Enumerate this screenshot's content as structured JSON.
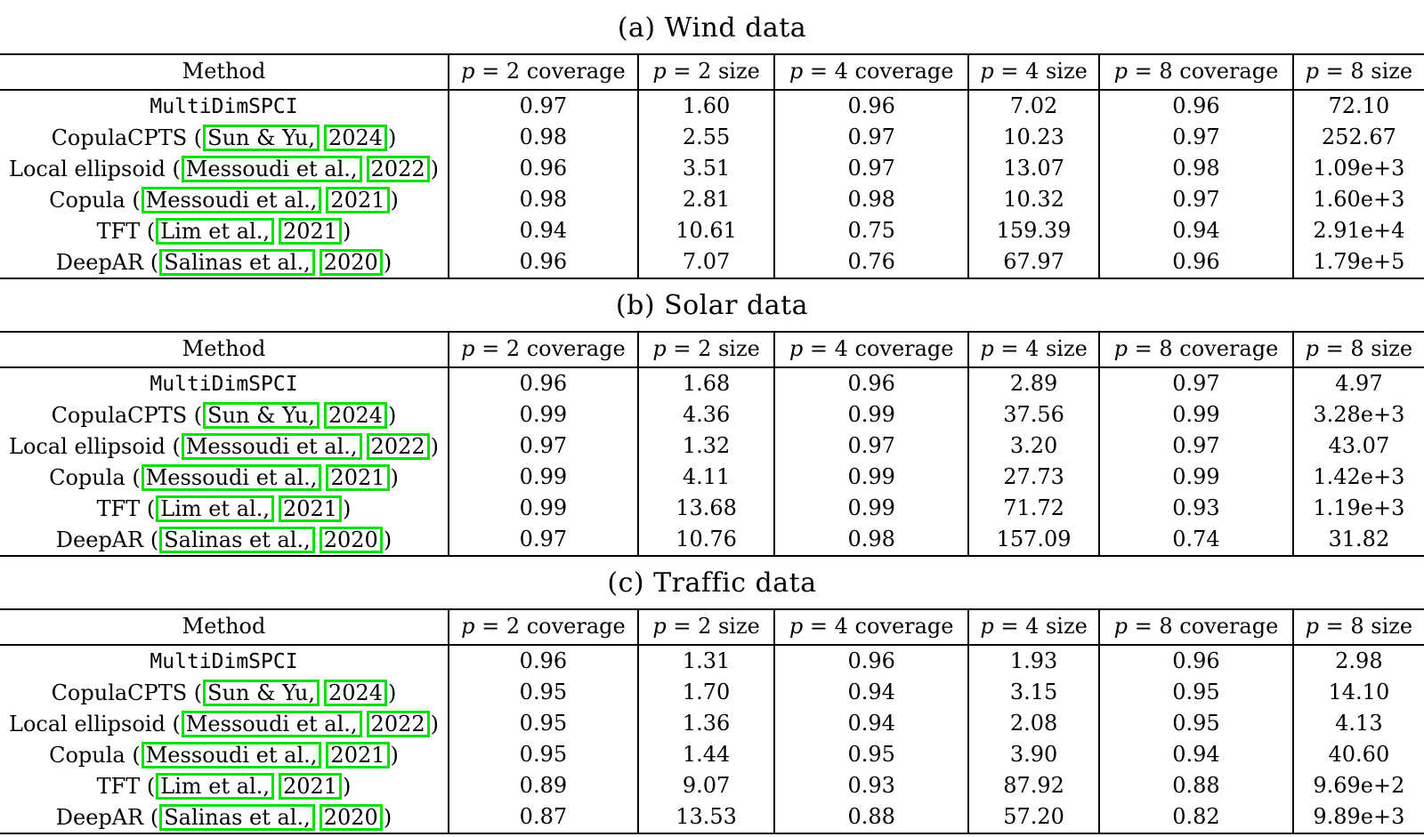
{
  "page": {
    "background": "#ffffff",
    "text_color": "#000000",
    "citation_box_color": "#0ddf0d"
  },
  "columns": {
    "method": "Method",
    "metrics": [
      {
        "math_var": "p",
        "rest": "= 2 coverage"
      },
      {
        "math_var": "p",
        "rest": "= 2 size"
      },
      {
        "math_var": "p",
        "rest": "= 4 coverage"
      },
      {
        "math_var": "p",
        "rest": "= 4 size"
      },
      {
        "math_var": "p",
        "rest": "= 8 coverage"
      },
      {
        "math_var": "p",
        "rest": "= 8 size"
      }
    ]
  },
  "methods": [
    {
      "style": "mono",
      "label": "MultiDimSPCI"
    },
    {
      "prefix": "CopulaCPTS (",
      "cite": "Sun & Yu,",
      "year": "2024",
      "suffix": ")"
    },
    {
      "prefix": "Local ellipsoid (",
      "cite": "Messoudi et al.,",
      "year": "2022",
      "suffix": ")"
    },
    {
      "prefix": "Copula (",
      "cite": "Messoudi et al.,",
      "year": "2021",
      "suffix": ")"
    },
    {
      "prefix": "TFT (",
      "cite": "Lim et al.,",
      "year": "2021",
      "suffix": ")"
    },
    {
      "prefix": "DeepAR (",
      "cite": "Salinas et al.,",
      "year": "2020",
      "suffix": ")"
    }
  ],
  "tables": [
    {
      "caption": "(a) Wind data",
      "rows": [
        {
          "values": [
            "0.97",
            "1.60",
            "0.96",
            "7.02",
            "0.96",
            "72.10"
          ],
          "bold": [
            false,
            true,
            false,
            true,
            false,
            true
          ]
        },
        {
          "values": [
            "0.98",
            "2.55",
            "0.97",
            "10.23",
            "0.97",
            "252.67"
          ],
          "bold": [
            false,
            false,
            false,
            false,
            false,
            false
          ]
        },
        {
          "values": [
            "0.96",
            "3.51",
            "0.97",
            "13.07",
            "0.98",
            "1.09e+3"
          ],
          "bold": [
            false,
            false,
            false,
            false,
            false,
            false
          ]
        },
        {
          "values": [
            "0.98",
            "2.81",
            "0.98",
            "10.32",
            "0.97",
            "1.60e+3"
          ],
          "bold": [
            false,
            false,
            false,
            false,
            false,
            false
          ]
        },
        {
          "values": [
            "0.94",
            "10.61",
            "0.75",
            "159.39",
            "0.94",
            "2.91e+4"
          ],
          "bold": [
            false,
            false,
            false,
            false,
            false,
            false
          ]
        },
        {
          "values": [
            "0.96",
            "7.07",
            "0.76",
            "67.97",
            "0.96",
            "1.79e+5"
          ],
          "bold": [
            false,
            false,
            false,
            false,
            false,
            false
          ]
        }
      ]
    },
    {
      "caption": "(b) Solar data",
      "rows": [
        {
          "values": [
            "0.96",
            "1.68",
            "0.96",
            "2.89",
            "0.97",
            "4.97"
          ],
          "bold": [
            false,
            false,
            false,
            true,
            false,
            true
          ]
        },
        {
          "values": [
            "0.99",
            "4.36",
            "0.99",
            "37.56",
            "0.99",
            "3.28e+3"
          ],
          "bold": [
            false,
            false,
            false,
            false,
            false,
            false
          ]
        },
        {
          "values": [
            "0.97",
            "1.32",
            "0.97",
            "3.20",
            "0.97",
            "43.07"
          ],
          "bold": [
            false,
            true,
            false,
            false,
            false,
            false
          ]
        },
        {
          "values": [
            "0.99",
            "4.11",
            "0.99",
            "27.73",
            "0.99",
            "1.42e+3"
          ],
          "bold": [
            false,
            false,
            false,
            false,
            false,
            false
          ]
        },
        {
          "values": [
            "0.99",
            "13.68",
            "0.99",
            "71.72",
            "0.93",
            "1.19e+3"
          ],
          "bold": [
            false,
            false,
            false,
            false,
            false,
            false
          ]
        },
        {
          "values": [
            "0.97",
            "10.76",
            "0.98",
            "157.09",
            "0.74",
            "31.82"
          ],
          "bold": [
            false,
            false,
            false,
            false,
            false,
            false
          ]
        }
      ]
    },
    {
      "caption": "(c) Traffic data",
      "rows": [
        {
          "values": [
            "0.96",
            "1.31",
            "0.96",
            "1.93",
            "0.96",
            "2.98"
          ],
          "bold": [
            false,
            true,
            false,
            true,
            false,
            true
          ]
        },
        {
          "values": [
            "0.95",
            "1.70",
            "0.94",
            "3.15",
            "0.95",
            "14.10"
          ],
          "bold": [
            false,
            false,
            false,
            false,
            false,
            false
          ]
        },
        {
          "values": [
            "0.95",
            "1.36",
            "0.94",
            "2.08",
            "0.95",
            "4.13"
          ],
          "bold": [
            false,
            false,
            false,
            false,
            false,
            false
          ]
        },
        {
          "values": [
            "0.95",
            "1.44",
            "0.95",
            "3.90",
            "0.94",
            "40.60"
          ],
          "bold": [
            false,
            false,
            false,
            false,
            false,
            false
          ]
        },
        {
          "values": [
            "0.89",
            "9.07",
            "0.93",
            "87.92",
            "0.88",
            "9.69e+2"
          ],
          "bold": [
            false,
            false,
            false,
            false,
            false,
            false
          ]
        },
        {
          "values": [
            "0.87",
            "13.53",
            "0.88",
            "57.20",
            "0.82",
            "9.89e+3"
          ],
          "bold": [
            false,
            false,
            false,
            false,
            false,
            false
          ]
        }
      ]
    }
  ]
}
